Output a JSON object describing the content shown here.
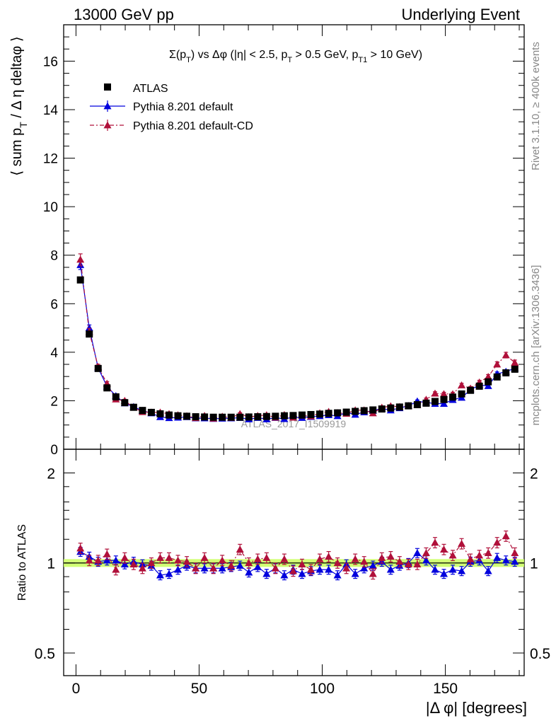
{
  "header": {
    "left": "13000 GeV pp",
    "right": "Underlying Event"
  },
  "side_labels": {
    "rivet": "Rivet 3.1.10, ≥ 400k events",
    "mcplots": "mcplots.cern.ch [arXiv:1306.3436]"
  },
  "watermark": "ATLAS_2017_I1509919",
  "legend": {
    "items": [
      {
        "label": "ATLAS",
        "marker": "square",
        "color": "#000000"
      },
      {
        "label": "Pythia 8.201 default",
        "marker": "triangle",
        "color": "#0000dd"
      },
      {
        "label": "Pythia 8.201 default-CD",
        "marker": "triangle",
        "color": "#b0103a"
      }
    ]
  },
  "chart_data": [
    {
      "type": "scatter",
      "title": "Σ(p_T) vs Δφ (|η| < 2.5, p_T > 0.5 GeV, p_T1 > 10 GeV)",
      "ylabel": "⟨ sum p_T / Δ η deltaφ ⟩",
      "xlabel": "",
      "xlim": [
        -5,
        182
      ],
      "ylim": [
        0,
        17.5
      ],
      "yticks": [
        0,
        2,
        4,
        6,
        8,
        10,
        12,
        14,
        16
      ],
      "x": [
        1.8,
        5.4,
        9.0,
        12.6,
        16.2,
        19.8,
        23.4,
        27.0,
        30.6,
        34.2,
        37.8,
        41.4,
        45.0,
        48.6,
        52.2,
        55.8,
        59.4,
        63.0,
        66.6,
        70.2,
        73.8,
        77.4,
        81.0,
        84.6,
        88.2,
        91.8,
        95.4,
        99.0,
        102.6,
        106.2,
        109.8,
        113.4,
        117.0,
        120.6,
        124.2,
        127.8,
        131.4,
        135.0,
        138.6,
        142.2,
        145.8,
        149.4,
        153.0,
        156.6,
        160.2,
        163.8,
        167.4,
        171.0,
        174.6,
        178.2
      ],
      "series": [
        {
          "name": "ATLAS",
          "values": [
            6.98,
            4.75,
            3.33,
            2.53,
            2.16,
            1.92,
            1.73,
            1.6,
            1.52,
            1.46,
            1.41,
            1.38,
            1.36,
            1.34,
            1.33,
            1.32,
            1.32,
            1.32,
            1.32,
            1.33,
            1.34,
            1.35,
            1.36,
            1.38,
            1.39,
            1.41,
            1.43,
            1.45,
            1.48,
            1.5,
            1.53,
            1.56,
            1.59,
            1.62,
            1.66,
            1.7,
            1.74,
            1.79,
            1.84,
            1.9,
            1.97,
            2.05,
            2.15,
            2.28,
            2.43,
            2.6,
            2.78,
            2.98,
            3.15,
            3.3
          ]
        },
        {
          "name": "Pythia 8.201 default",
          "values": [
            7.6,
            5.0,
            3.35,
            2.59,
            2.2,
            1.9,
            1.75,
            1.59,
            1.49,
            1.33,
            1.29,
            1.31,
            1.33,
            1.28,
            1.28,
            1.26,
            1.27,
            1.28,
            1.3,
            1.24,
            1.3,
            1.24,
            1.3,
            1.25,
            1.32,
            1.3,
            1.34,
            1.37,
            1.41,
            1.37,
            1.52,
            1.43,
            1.53,
            1.59,
            1.68,
            1.61,
            1.7,
            1.79,
            1.98,
            1.93,
            1.88,
            1.88,
            2.04,
            2.13,
            2.45,
            2.65,
            2.61,
            3.11,
            3.2,
            3.34
          ]
        },
        {
          "name": "Pythia 8.201 default-CD",
          "values": [
            7.82,
            4.84,
            3.4,
            2.71,
            2.06,
            2.0,
            1.72,
            1.54,
            1.52,
            1.52,
            1.46,
            1.41,
            1.37,
            1.29,
            1.38,
            1.27,
            1.35,
            1.3,
            1.46,
            1.33,
            1.38,
            1.41,
            1.31,
            1.42,
            1.31,
            1.39,
            1.36,
            1.49,
            1.55,
            1.5,
            1.47,
            1.61,
            1.61,
            1.49,
            1.72,
            1.78,
            1.75,
            1.78,
            1.83,
            2.05,
            2.3,
            2.28,
            2.28,
            2.64,
            2.51,
            2.76,
            2.99,
            3.5,
            3.88,
            3.57
          ]
        }
      ]
    },
    {
      "type": "scatter",
      "title": "",
      "ylabel": "Ratio to ATLAS",
      "xlabel": "|Δ φ| [degrees]",
      "xlim": [
        -5,
        182
      ],
      "ylim": [
        0.42,
        2.4
      ],
      "yscale": "log",
      "yticks": [
        0.5,
        1,
        2
      ],
      "xticks": [
        0,
        50,
        100,
        150
      ],
      "x": [
        1.8,
        5.4,
        9.0,
        12.6,
        16.2,
        19.8,
        23.4,
        27.0,
        30.6,
        34.2,
        37.8,
        41.4,
        45.0,
        48.6,
        52.2,
        55.8,
        59.4,
        63.0,
        66.6,
        70.2,
        73.8,
        77.4,
        81.0,
        84.6,
        88.2,
        91.8,
        95.4,
        99.0,
        102.6,
        106.2,
        109.8,
        113.4,
        117.0,
        120.6,
        124.2,
        127.8,
        131.4,
        135.0,
        138.6,
        142.2,
        145.8,
        149.4,
        153.0,
        156.6,
        160.2,
        163.8,
        167.4,
        171.0,
        174.6,
        178.2
      ],
      "band": {
        "low": 0.97,
        "high": 1.03,
        "color": "#ccff66"
      },
      "series": [
        {
          "name": "Pythia 8.201 default",
          "values": [
            1.09,
            1.05,
            1.01,
            1.02,
            1.02,
            0.99,
            1.01,
            0.99,
            0.98,
            0.91,
            0.92,
            0.95,
            0.98,
            0.96,
            0.96,
            0.96,
            0.96,
            0.97,
            0.98,
            0.93,
            0.97,
            0.92,
            0.96,
            0.91,
            0.95,
            0.92,
            0.94,
            0.95,
            0.95,
            0.91,
            0.99,
            0.92,
            0.96,
            0.98,
            1.01,
            0.95,
            0.98,
            1.0,
            1.08,
            1.02,
            0.95,
            0.92,
            0.95,
            0.94,
            1.01,
            1.02,
            0.94,
            1.04,
            1.02,
            1.01
          ]
        },
        {
          "name": "Pythia 8.201 default-CD",
          "values": [
            1.12,
            1.02,
            1.02,
            1.07,
            0.95,
            1.04,
            0.99,
            0.96,
            1.0,
            1.04,
            1.04,
            1.02,
            1.01,
            0.96,
            1.04,
            0.96,
            1.02,
            0.98,
            1.11,
            1.0,
            1.03,
            1.04,
            0.96,
            1.03,
            0.94,
            0.99,
            0.95,
            1.03,
            1.05,
            1.0,
            0.96,
            1.03,
            1.01,
            0.92,
            1.04,
            1.05,
            1.01,
            0.99,
            0.99,
            1.08,
            1.17,
            1.11,
            1.06,
            1.16,
            1.03,
            1.06,
            1.08,
            1.17,
            1.23,
            1.08
          ]
        }
      ]
    }
  ]
}
